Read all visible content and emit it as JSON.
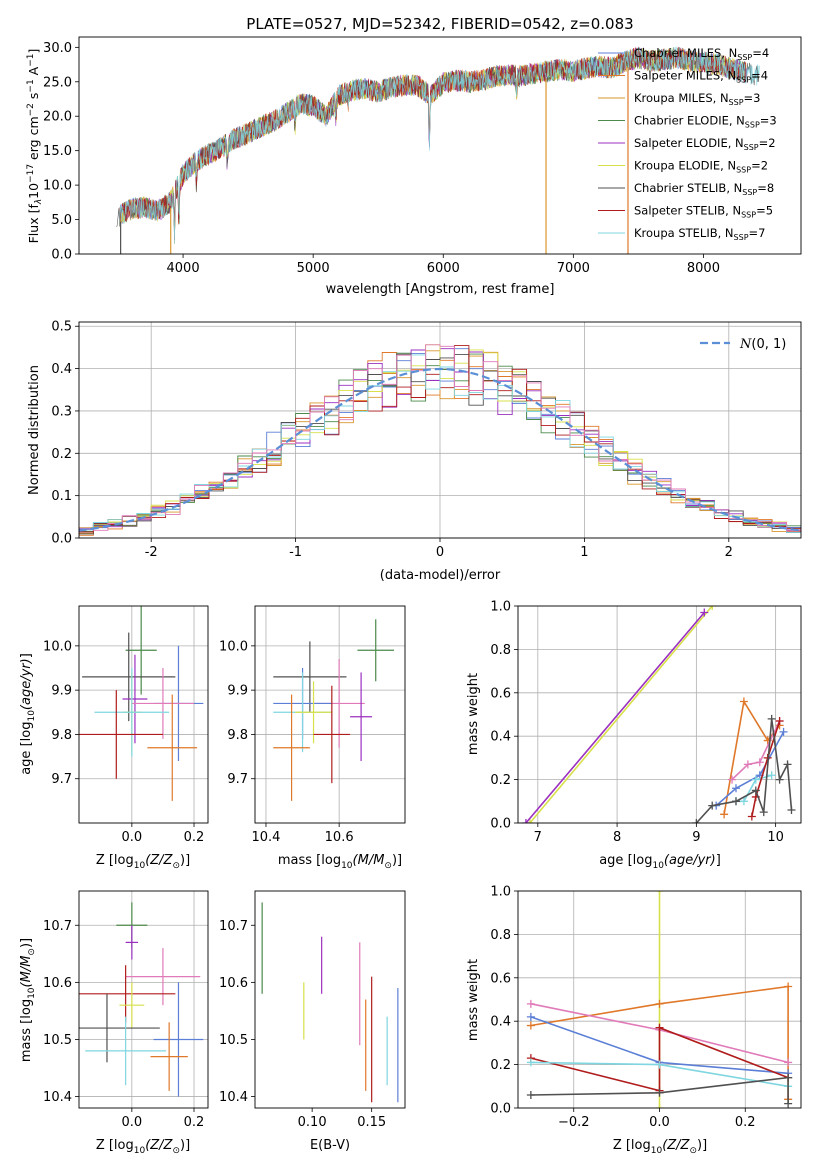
{
  "figure_title": "PLATE=0527, MJD=52342, FIBERID=0542, z=0.083",
  "colors": {
    "chabrier_miles": "#5b7fd6",
    "salpeter_miles": "#e0782a",
    "kroupa_miles": "#d9962e",
    "chabrier_elodie": "#4a8a4a",
    "salpeter_elodie": "#9b30c0",
    "kroupa_elodie": "#d8e04a",
    "chabrier_stelib": "#505050",
    "salpeter_stelib": "#b01c1c",
    "kroupa_stelib": "#7fd6e0",
    "pink": "#e07ab8",
    "normal_curve": "#5b8fd6",
    "grid": "#b0b0b0"
  },
  "chart_data": [
    {
      "type": "line",
      "id": "spectrum",
      "xlabel": "wavelength [Angstrom, rest frame]",
      "ylabel": "Flux [f_λ10^-17 erg cm^-2 s^-1 A^-1]",
      "xlim": [
        3200,
        8750
      ],
      "ylim": [
        0,
        31.5
      ],
      "xticks": [
        4000,
        5000,
        6000,
        7000,
        8000
      ],
      "yticks": [
        0,
        5,
        10,
        15,
        20,
        25,
        30
      ],
      "grid": false,
      "legend": "top-right",
      "continuum": {
        "x": [
          3500,
          3600,
          3700,
          3800,
          3900,
          4000,
          4100,
          4200,
          4300,
          4400,
          4500,
          4600,
          4700,
          4800,
          4900,
          5000,
          5100,
          5200,
          5300,
          5400,
          5500,
          5600,
          5700,
          5800,
          5900,
          6000,
          6100,
          6200,
          6300,
          6400,
          6500,
          6600,
          6700,
          6800,
          6900,
          7000,
          7100,
          7200,
          7300,
          7400,
          7500,
          7600,
          7700,
          7800,
          7900,
          8000,
          8100,
          8200,
          8300,
          8400
        ],
        "y": [
          5.5,
          6.5,
          6.8,
          6.2,
          7.5,
          11.5,
          13.5,
          14.5,
          15.5,
          16.8,
          17.5,
          18.5,
          19.3,
          20.5,
          21.8,
          21.5,
          20.0,
          23.0,
          23.8,
          24.0,
          23.5,
          24.2,
          24.5,
          24.5,
          23.0,
          24.8,
          25.2,
          25.0,
          25.2,
          25.8,
          26.0,
          25.8,
          26.2,
          26.5,
          26.8,
          26.5,
          27.0,
          27.2,
          27.0,
          28.0,
          28.5,
          28.0,
          28.2,
          28.5,
          28.0,
          27.8,
          27.5,
          27.0,
          26.5,
          26.0
        ]
      },
      "series": [
        {
          "name": "Chabrier MILES, N_SSP=4",
          "label_main": "Chabrier MILES, N",
          "label_sub": "SSP",
          "label_end": "=4",
          "color_key": "chabrier_miles"
        },
        {
          "name": "Salpeter MILES, N_SSP=4",
          "label_main": "Salpeter MILES, N",
          "label_sub": "SSP",
          "label_end": "=4",
          "color_key": "salpeter_miles"
        },
        {
          "name": "Kroupa MILES, N_SSP=3",
          "label_main": "Kroupa MILES, N",
          "label_sub": "SSP",
          "label_end": "=3",
          "color_key": "kroupa_miles"
        },
        {
          "name": "Chabrier ELODIE, N_SSP=3",
          "label_main": "Chabrier ELODIE, N",
          "label_sub": "SSP",
          "label_end": "=3",
          "color_key": "chabrier_elodie"
        },
        {
          "name": "Salpeter ELODIE, N_SSP=2",
          "label_main": "Salpeter ELODIE, N",
          "label_sub": "SSP",
          "label_end": "=2",
          "color_key": "salpeter_elodie"
        },
        {
          "name": "Kroupa ELODIE, N_SSP=2",
          "label_main": "Kroupa ELODIE, N",
          "label_sub": "SSP",
          "label_end": "=2",
          "color_key": "kroupa_elodie"
        },
        {
          "name": "Chabrier STELIB, N_SSP=8",
          "label_main": "Chabrier STELIB, N",
          "label_sub": "SSP",
          "label_end": "=8",
          "color_key": "chabrier_stelib"
        },
        {
          "name": "Salpeter STELIB, N_SSP=5",
          "label_main": "Salpeter STELIB, N",
          "label_sub": "SSP",
          "label_end": "=5",
          "color_key": "salpeter_stelib"
        },
        {
          "name": "Kroupa STELIB, N_SSP=7",
          "label_main": "Kroupa STELIB, N",
          "label_sub": "SSP",
          "label_end": "=7",
          "color_key": "kroupa_stelib"
        }
      ],
      "drop_lines": [
        {
          "x": 3520,
          "color_key": "chabrier_stelib"
        },
        {
          "x": 3905,
          "color_key": "kroupa_miles"
        },
        {
          "x": 6790,
          "color_key": "kroupa_miles"
        },
        {
          "x": 7420,
          "color_key": "salpeter_miles"
        }
      ]
    },
    {
      "type": "histogram",
      "id": "residuals",
      "xlabel": "(data-model)/error",
      "ylabel": "Normed distribution",
      "xlim": [
        -2.5,
        2.5
      ],
      "ylim": [
        0,
        0.51
      ],
      "xticks": [
        -2,
        -1,
        0,
        1,
        2
      ],
      "yticks": [
        0.0,
        0.1,
        0.2,
        0.3,
        0.4,
        0.5
      ],
      "grid": true,
      "legend": "top-right",
      "curve_label": "N(0, 1)",
      "bin_width": 0.1,
      "reference_curve": "standard normal pdf"
    },
    {
      "type": "scatter",
      "id": "z_vs_age",
      "xlabel": "Z [log10(Z/Z⊙)]",
      "ylabel": "age [log10(age/yr)]",
      "xlim": [
        -0.17,
        0.245
      ],
      "ylim": [
        9.6,
        10.09
      ],
      "xticks": [
        0.0,
        0.2
      ],
      "xticklabels": [
        "0.0",
        "0.2"
      ],
      "yticks": [
        9.7,
        9.8,
        9.9,
        10.0
      ],
      "yticklabels": [
        "9.7",
        "9.8",
        "9.9",
        "10.0"
      ],
      "grid": true,
      "points": [
        {
          "x": 0.03,
          "y": 9.99,
          "xerr": 0.05,
          "yerr": 0.1,
          "color_key": "chabrier_elodie"
        },
        {
          "x": -0.01,
          "y": 9.93,
          "xerr": 0.15,
          "yerr": 0.1,
          "color_key": "chabrier_stelib"
        },
        {
          "x": 0.01,
          "y": 9.88,
          "xerr": 0.04,
          "yerr": 0.1,
          "color_key": "salpeter_elodie"
        },
        {
          "x": 0.15,
          "y": 9.87,
          "xerr": 0.08,
          "yerr": 0.13,
          "color_key": "chabrier_miles"
        },
        {
          "x": 0.1,
          "y": 9.87,
          "xerr": 0.1,
          "yerr": 0.08,
          "color_key": "pink"
        },
        {
          "x": 0.0,
          "y": 9.85,
          "xerr": 0.03,
          "yerr": 0.09,
          "color_key": "kroupa_elodie"
        },
        {
          "x": -0.0,
          "y": 9.85,
          "xerr": 0.12,
          "yerr": 0.1,
          "color_key": "kroupa_stelib"
        },
        {
          "x": -0.05,
          "y": 9.8,
          "xerr": 0.15,
          "yerr": 0.1,
          "color_key": "salpeter_stelib"
        },
        {
          "x": 0.13,
          "y": 9.77,
          "xerr": 0.08,
          "yerr": 0.12,
          "color_key": "salpeter_miles"
        }
      ]
    },
    {
      "type": "scatter",
      "id": "mass_vs_age",
      "xlabel": "mass [log10(M/M⊙)]",
      "ylabel": "",
      "xlim": [
        10.37,
        10.78
      ],
      "ylim": [
        9.6,
        10.09
      ],
      "xticks": [
        10.4,
        10.6
      ],
      "xticklabels": [
        "10.4",
        "10.6"
      ],
      "yticks": [
        9.7,
        9.8,
        9.9,
        10.0
      ],
      "yticklabels": [
        "9.7",
        "9.8",
        "9.9",
        "10.0"
      ],
      "grid": true,
      "points": [
        {
          "x": 10.7,
          "y": 9.99,
          "xerr": 0.05,
          "yerr": 0.07,
          "color_key": "chabrier_elodie"
        },
        {
          "x": 10.52,
          "y": 9.93,
          "xerr": 0.1,
          "yerr": 0.08,
          "color_key": "chabrier_stelib"
        },
        {
          "x": 10.6,
          "y": 9.87,
          "xerr": 0.07,
          "yerr": 0.1,
          "color_key": "pink"
        },
        {
          "x": 10.5,
          "y": 9.87,
          "xerr": 0.08,
          "yerr": 0.08,
          "color_key": "chabrier_miles"
        },
        {
          "x": 10.5,
          "y": 9.85,
          "xerr": 0.08,
          "yerr": 0.09,
          "color_key": "kroupa_stelib"
        },
        {
          "x": 10.53,
          "y": 9.85,
          "xerr": 0.05,
          "yerr": 0.07,
          "color_key": "kroupa_elodie"
        },
        {
          "x": 10.66,
          "y": 9.84,
          "xerr": 0.03,
          "yerr": 0.1,
          "color_key": "salpeter_elodie"
        },
        {
          "x": 10.58,
          "y": 9.8,
          "xerr": 0.05,
          "yerr": 0.11,
          "color_key": "salpeter_stelib"
        },
        {
          "x": 10.47,
          "y": 9.77,
          "xerr": 0.05,
          "yerr": 0.12,
          "color_key": "salpeter_miles"
        }
      ]
    },
    {
      "type": "line",
      "id": "age_vs_weight",
      "xlabel": "age [log10(age/yr)]",
      "ylabel": "mass weight",
      "xlim": [
        6.75,
        10.32
      ],
      "ylim": [
        0,
        1.0
      ],
      "xticks": [
        7,
        8,
        9,
        10
      ],
      "xticklabels": [
        "7",
        "8",
        "9",
        "10"
      ],
      "yticks": [
        0.0,
        0.2,
        0.4,
        0.6,
        0.8,
        1.0
      ],
      "yticklabels": [
        "0.0",
        "0.2",
        "0.4",
        "0.6",
        "0.8",
        "1.0"
      ],
      "grid": true,
      "series": [
        {
          "color_key": "kroupa_elodie",
          "x": [
            6.9,
            9.2
          ],
          "y": [
            0.0,
            1.0
          ]
        },
        {
          "color_key": "salpeter_elodie",
          "x": [
            6.85,
            9.1
          ],
          "y": [
            0.0,
            0.97
          ]
        },
        {
          "color_key": "salpeter_miles",
          "x": [
            9.35,
            9.6,
            9.9,
            10.05
          ],
          "y": [
            0.04,
            0.56,
            0.38,
            0.45
          ]
        },
        {
          "color_key": "chabrier_miles",
          "x": [
            9.25,
            9.5,
            9.8,
            10.1
          ],
          "y": [
            0.08,
            0.16,
            0.22,
            0.42
          ]
        },
        {
          "color_key": "pink",
          "x": [
            9.45,
            9.65,
            9.8,
            10.05
          ],
          "y": [
            0.2,
            0.27,
            0.28,
            0.47
          ]
        },
        {
          "color_key": "kroupa_stelib",
          "x": [
            9.5,
            9.6,
            9.75,
            9.95
          ],
          "y": [
            0.1,
            0.1,
            0.2,
            0.22
          ]
        },
        {
          "color_key": "salpeter_stelib",
          "x": [
            9.7,
            9.75,
            9.9,
            10.05
          ],
          "y": [
            0.03,
            0.12,
            0.3,
            0.47
          ]
        },
        {
          "color_key": "chabrier_stelib",
          "x": [
            9.0,
            9.2,
            9.5,
            9.75,
            9.85,
            9.95,
            10.05,
            10.15,
            10.2
          ],
          "y": [
            0.0,
            0.08,
            0.1,
            0.15,
            0.05,
            0.48,
            0.2,
            0.27,
            0.06
          ]
        }
      ]
    },
    {
      "type": "scatter",
      "id": "z_vs_mass",
      "xlabel": "Z [log10(Z/Z⊙)]",
      "ylabel": "mass [log10(M/M⊙)]",
      "xlim": [
        -0.17,
        0.245
      ],
      "ylim": [
        10.38,
        10.76
      ],
      "xticks": [
        0.0,
        0.2
      ],
      "xticklabels": [
        "0.0",
        "0.2"
      ],
      "yticks": [
        10.4,
        10.5,
        10.6,
        10.7
      ],
      "yticklabels": [
        "10.4",
        "10.5",
        "10.6",
        "10.7"
      ],
      "grid": true,
      "points": [
        {
          "x": 0.0,
          "y": 10.7,
          "xerr": 0.05,
          "yerr": 0.04,
          "color_key": "chabrier_elodie"
        },
        {
          "x": 0.0,
          "y": 10.67,
          "xerr": 0.02,
          "yerr": 0.03,
          "color_key": "salpeter_elodie"
        },
        {
          "x": 0.1,
          "y": 10.61,
          "xerr": 0.12,
          "yerr": 0.05,
          "color_key": "pink"
        },
        {
          "x": -0.02,
          "y": 10.58,
          "xerr": 0.16,
          "yerr": 0.05,
          "color_key": "salpeter_stelib"
        },
        {
          "x": 0.0,
          "y": 10.56,
          "xerr": 0.04,
          "yerr": 0.04,
          "color_key": "kroupa_elodie"
        },
        {
          "x": -0.08,
          "y": 10.52,
          "xerr": 0.17,
          "yerr": 0.06,
          "color_key": "chabrier_stelib"
        },
        {
          "x": 0.15,
          "y": 10.5,
          "xerr": 0.08,
          "yerr": 0.1,
          "color_key": "chabrier_miles"
        },
        {
          "x": -0.02,
          "y": 10.48,
          "xerr": 0.13,
          "yerr": 0.06,
          "color_key": "kroupa_stelib"
        },
        {
          "x": 0.12,
          "y": 10.47,
          "xerr": 0.06,
          "yerr": 0.06,
          "color_key": "salpeter_miles"
        }
      ]
    },
    {
      "type": "scatter",
      "id": "ebv_vs_mass",
      "xlabel": "E(B-V)",
      "ylabel": "",
      "xlim": [
        0.052,
        0.178
      ],
      "ylim": [
        10.38,
        10.76
      ],
      "xticks": [
        0.1,
        0.15
      ],
      "xticklabels": [
        "0.10",
        "0.15"
      ],
      "yticks": [
        10.4,
        10.5,
        10.6,
        10.7
      ],
      "yticklabels": [
        "10.4",
        "10.5",
        "10.6",
        "10.7"
      ],
      "grid": false,
      "points": [
        {
          "x": 0.058,
          "y": 10.66,
          "yerr": 0.08,
          "color_key": "chabrier_elodie"
        },
        {
          "x": 0.093,
          "y": 10.55,
          "yerr": 0.05,
          "color_key": "kroupa_elodie"
        },
        {
          "x": 0.108,
          "y": 10.63,
          "yerr": 0.05,
          "color_key": "salpeter_elodie"
        },
        {
          "x": 0.14,
          "y": 10.58,
          "yerr": 0.09,
          "color_key": "pink"
        },
        {
          "x": 0.145,
          "y": 10.49,
          "yerr": 0.08,
          "color_key": "salpeter_miles"
        },
        {
          "x": 0.15,
          "y": 10.5,
          "yerr": 0.11,
          "color_key": "salpeter_stelib"
        },
        {
          "x": 0.163,
          "y": 10.48,
          "yerr": 0.06,
          "color_key": "kroupa_stelib"
        },
        {
          "x": 0.172,
          "y": 10.49,
          "yerr": 0.1,
          "color_key": "chabrier_miles"
        }
      ]
    },
    {
      "type": "line",
      "id": "z_vs_weight",
      "xlabel": "Z [log10(Z/Z⊙)]",
      "ylabel": "mass weight",
      "xlim": [
        -0.33,
        0.33
      ],
      "ylim": [
        0,
        1.0
      ],
      "xticks": [
        -0.2,
        0.0,
        0.2
      ],
      "xticklabels": [
        "−0.2",
        "0.0",
        "0.2"
      ],
      "yticks": [
        0.0,
        0.2,
        0.4,
        0.6,
        0.8,
        1.0
      ],
      "yticklabels": [
        "0.0",
        "0.2",
        "0.4",
        "0.6",
        "0.8",
        "1.0"
      ],
      "grid": true,
      "series": [
        {
          "color_key": "kroupa_elodie",
          "x": [
            0.0,
            0.0
          ],
          "y": [
            0.0,
            1.0
          ]
        },
        {
          "color_key": "salpeter_miles",
          "x": [
            -0.3,
            0.0,
            0.3,
            0.3
          ],
          "y": [
            0.38,
            0.48,
            0.56,
            0.04
          ]
        },
        {
          "color_key": "pink",
          "x": [
            -0.3,
            0.0,
            0.3
          ],
          "y": [
            0.48,
            0.36,
            0.21
          ]
        },
        {
          "color_key": "chabrier_miles",
          "x": [
            -0.3,
            0.0,
            0.3
          ],
          "y": [
            0.42,
            0.21,
            0.16
          ]
        },
        {
          "color_key": "salpeter_stelib",
          "x": [
            -0.3,
            0.0,
            0.0,
            0.3
          ],
          "y": [
            0.23,
            0.08,
            0.37,
            0.14
          ]
        },
        {
          "color_key": "kroupa_stelib",
          "x": [
            -0.3,
            0.0,
            0.3
          ],
          "y": [
            0.21,
            0.2,
            0.1
          ]
        },
        {
          "color_key": "chabrier_stelib",
          "x": [
            -0.3,
            0.0,
            0.3,
            0.3
          ],
          "y": [
            0.06,
            0.07,
            0.14,
            0.02
          ]
        }
      ]
    }
  ]
}
